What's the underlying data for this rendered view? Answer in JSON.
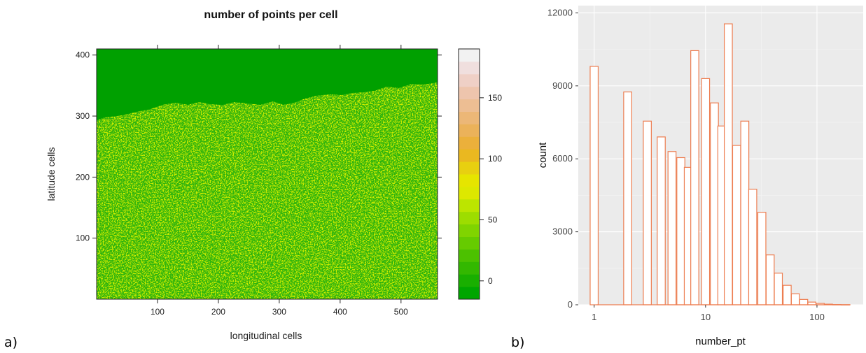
{
  "panel_labels": {
    "a": "a)",
    "b": "b)"
  },
  "chart_data": [
    {
      "type": "heatmap",
      "title": "number of points per cell",
      "xlabel": "longitudinal cells",
      "ylabel": "latitude cells",
      "xlim": [
        0,
        560
      ],
      "ylim": [
        0,
        410
      ],
      "xticks": [
        100,
        200,
        300,
        400,
        500
      ],
      "yticks": [
        100,
        200,
        300,
        400
      ],
      "colorbar": {
        "ticks": [
          0,
          50,
          100,
          150
        ],
        "range": [
          -15,
          190
        ],
        "colors": [
          "#00a600",
          "#19af00",
          "#33b800",
          "#4cc100",
          "#66cb00",
          "#80d400",
          "#9ddd00",
          "#bce500",
          "#dde800",
          "#e6e500",
          "#e8d010",
          "#eab820",
          "#ebb03b",
          "#ebb25a",
          "#ecb777",
          "#edbe93",
          "#eec5ad",
          "#efd0c6",
          "#f0dfde",
          "#f2f2f2"
        ]
      },
      "colors": {
        "background": "#00a000",
        "speckle_light": "#9ddd00",
        "speckle_bright": "#dde800"
      },
      "grid": false
    },
    {
      "type": "bar",
      "subtype": "histogram",
      "xlabel": "number_pt",
      "ylabel": "count",
      "x_scale": "log10",
      "xlim": [
        0.72,
        260
      ],
      "ylim": [
        0,
        12300
      ],
      "xticks": [
        1,
        10,
        100
      ],
      "yticks": [
        0,
        3000,
        6000,
        9000,
        12000
      ],
      "bins": [
        {
          "x": 1.0,
          "count": 9800
        },
        {
          "x": 2.0,
          "count": 8750
        },
        {
          "x": 3.0,
          "count": 7550
        },
        {
          "x": 4.0,
          "count": 6900
        },
        {
          "x": 5.0,
          "count": 6300
        },
        {
          "x": 6.0,
          "count": 6050
        },
        {
          "x": 7.0,
          "count": 5650
        },
        {
          "x": 8.0,
          "count": 10450
        },
        {
          "x": 10.0,
          "count": 9300
        },
        {
          "x": 12.0,
          "count": 8300
        },
        {
          "x": 14.0,
          "count": 7350
        },
        {
          "x": 16.0,
          "count": 11550
        },
        {
          "x": 19.0,
          "count": 6550
        },
        {
          "x": 22.5,
          "count": 7550
        },
        {
          "x": 26.5,
          "count": 4750
        },
        {
          "x": 32.0,
          "count": 3800
        },
        {
          "x": 38.0,
          "count": 2050
        },
        {
          "x": 45.0,
          "count": 1300
        },
        {
          "x": 54.0,
          "count": 800
        },
        {
          "x": 64.0,
          "count": 450
        },
        {
          "x": 76.0,
          "count": 220
        },
        {
          "x": 90.0,
          "count": 110
        },
        {
          "x": 107.0,
          "count": 55
        },
        {
          "x": 127.0,
          "count": 25
        },
        {
          "x": 151.0,
          "count": 10
        },
        {
          "x": 180.0,
          "count": 5
        }
      ],
      "colors": {
        "panel_bg": "#ebebeb",
        "grid": "#ffffff",
        "bar_outline": "#ed7d50",
        "bar_fill": "#ffffff"
      },
      "grid": true
    }
  ]
}
